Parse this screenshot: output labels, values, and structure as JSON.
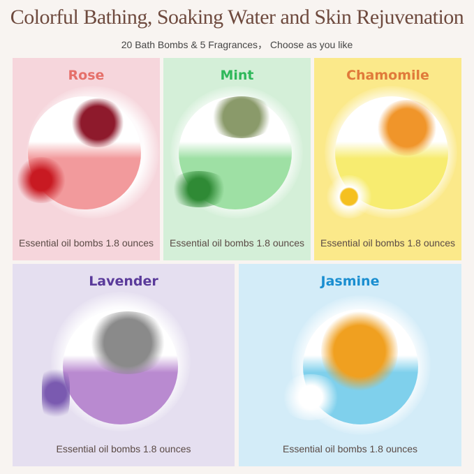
{
  "title": "Colorful Bathing, Soaking Water and Skin Rejuvenation",
  "subtitle": "20 Bath Bombs & 5 Fragrances，  Choose as you like",
  "products": [
    {
      "name": "Rose",
      "caption": "Essential oil bombs 1.8 ounces",
      "name_color": "#e5706a",
      "panel_color": "#f6d6dc",
      "bomb_color": "#f29a9c",
      "topping_color": "#8e1a2c",
      "flower_color": "#c81a22"
    },
    {
      "name": "Mint",
      "caption": "Essential oil bombs 1.8 ounces",
      "name_color": "#2fb85a",
      "panel_color": "#d4efd8",
      "bomb_color": "#9ee0a4",
      "topping_color": "#8a9a6a",
      "flower_color": "#2f8a35"
    },
    {
      "name": "Chamomile",
      "caption": "Essential oil bombs 1.8 ounces",
      "name_color": "#e07a3a",
      "panel_color": "#fbe98a",
      "bomb_color": "#f7ec70",
      "topping_color": "#f0952a",
      "flower_color": "#ffffff"
    },
    {
      "name": "Lavender",
      "caption": "Essential oil bombs 1.8 ounces",
      "name_color": "#5a3a9a",
      "panel_color": "#e5dff0",
      "bomb_color": "#b98ad0",
      "topping_color": "#8a8a8a",
      "flower_color": "#7a5ab0"
    },
    {
      "name": "Jasmine",
      "caption": "Essential oil bombs 1.8 ounces",
      "name_color": "#1a8ed0",
      "panel_color": "#d3ecf8",
      "bomb_color": "#7fd0ec",
      "topping_color": "#f0a020",
      "flower_color": "#ffffff"
    }
  ]
}
